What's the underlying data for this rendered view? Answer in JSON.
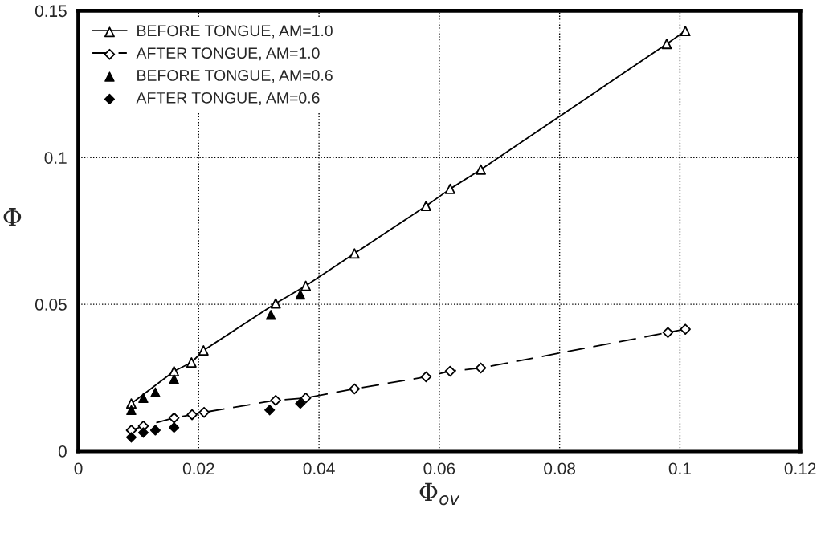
{
  "chart_data": {
    "type": "line",
    "xlabel": "Φ$_{ov}$",
    "ylabel": "Φ",
    "xlim": [
      0,
      0.12
    ],
    "xticks": [
      0,
      0.02,
      0.04,
      0.06,
      0.08,
      0.1,
      0.12
    ],
    "ylim": [
      0,
      0.15
    ],
    "yticks": [
      0,
      0.05,
      0.1,
      0.15
    ],
    "grid": true,
    "legend": "top left",
    "series": [
      {
        "name": "BEFORE TONGUE, AM=1.0",
        "marker": "triangle",
        "line_style": "solid",
        "color": "#000000",
        "x": [
          0.0088,
          0.0159,
          0.0188,
          0.0208,
          0.0328,
          0.0378,
          0.0459,
          0.0578,
          0.0618,
          0.0669,
          0.0978,
          0.1009
        ],
        "values": [
          0.0162,
          0.0272,
          0.0302,
          0.0343,
          0.0503,
          0.0563,
          0.0673,
          0.0835,
          0.0893,
          0.0959,
          0.1387,
          0.1431
        ]
      },
      {
        "name": "AFTER TONGUE, AM=1.0",
        "marker": "diamond",
        "line_style": "dashed",
        "color": "#000000",
        "x": [
          0.0088,
          0.0108,
          0.0159,
          0.0189,
          0.0209,
          0.0328,
          0.0378,
          0.0459,
          0.0578,
          0.0618,
          0.0669,
          0.098,
          0.1009
        ],
        "values": [
          0.0071,
          0.0085,
          0.0113,
          0.0124,
          0.0132,
          0.0173,
          0.0181,
          0.0212,
          0.0253,
          0.0272,
          0.0283,
          0.0404,
          0.0415
        ]
      },
      {
        "name": "BEFORE TONGUE, AM=0.6",
        "type": "scatter",
        "marker": "triangle",
        "color": "#000000",
        "x": [
          0.0088,
          0.0108,
          0.0128,
          0.0159,
          0.032,
          0.0369
        ],
        "values": [
          0.014,
          0.0181,
          0.02,
          0.0245,
          0.0464,
          0.0533
        ]
      },
      {
        "name": "AFTER TONGUE, AM=0.6",
        "type": "scatter",
        "marker": "diamond",
        "color": "#000000",
        "x": [
          0.0088,
          0.0108,
          0.0128,
          0.0159,
          0.0318,
          0.0369
        ],
        "values": [
          0.0047,
          0.0063,
          0.0071,
          0.008,
          0.014,
          0.0162
        ]
      }
    ]
  }
}
